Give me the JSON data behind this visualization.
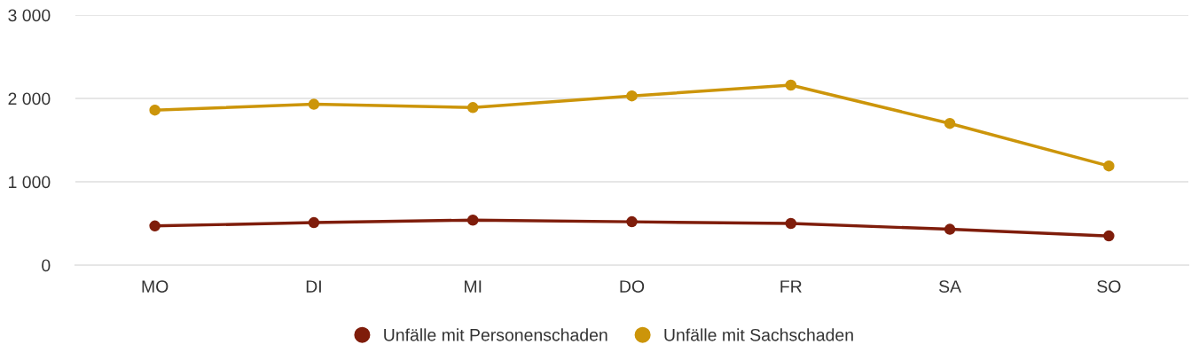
{
  "chart_data": {
    "type": "line",
    "categories": [
      "MO",
      "DI",
      "MI",
      "DO",
      "FR",
      "SA",
      "SO"
    ],
    "series": [
      {
        "name": "Unfälle mit Personenschaden",
        "color": "#7f1d0b",
        "values": [
          470,
          510,
          540,
          520,
          500,
          430,
          350
        ]
      },
      {
        "name": "Unfälle mit Sachschaden",
        "color": "#cc950a",
        "values": [
          1860,
          1930,
          1890,
          2030,
          2160,
          1700,
          1190
        ]
      }
    ],
    "ylim": [
      0,
      3000
    ],
    "yticks": [
      0,
      {
        "value": 1000,
        "label": "1 000"
      },
      {
        "value": 2000,
        "label": "2 000"
      },
      {
        "value": 3000,
        "label": "3 000"
      }
    ],
    "grid": "y",
    "legend": "bottom",
    "marker": "circle",
    "line_style": "solid"
  }
}
